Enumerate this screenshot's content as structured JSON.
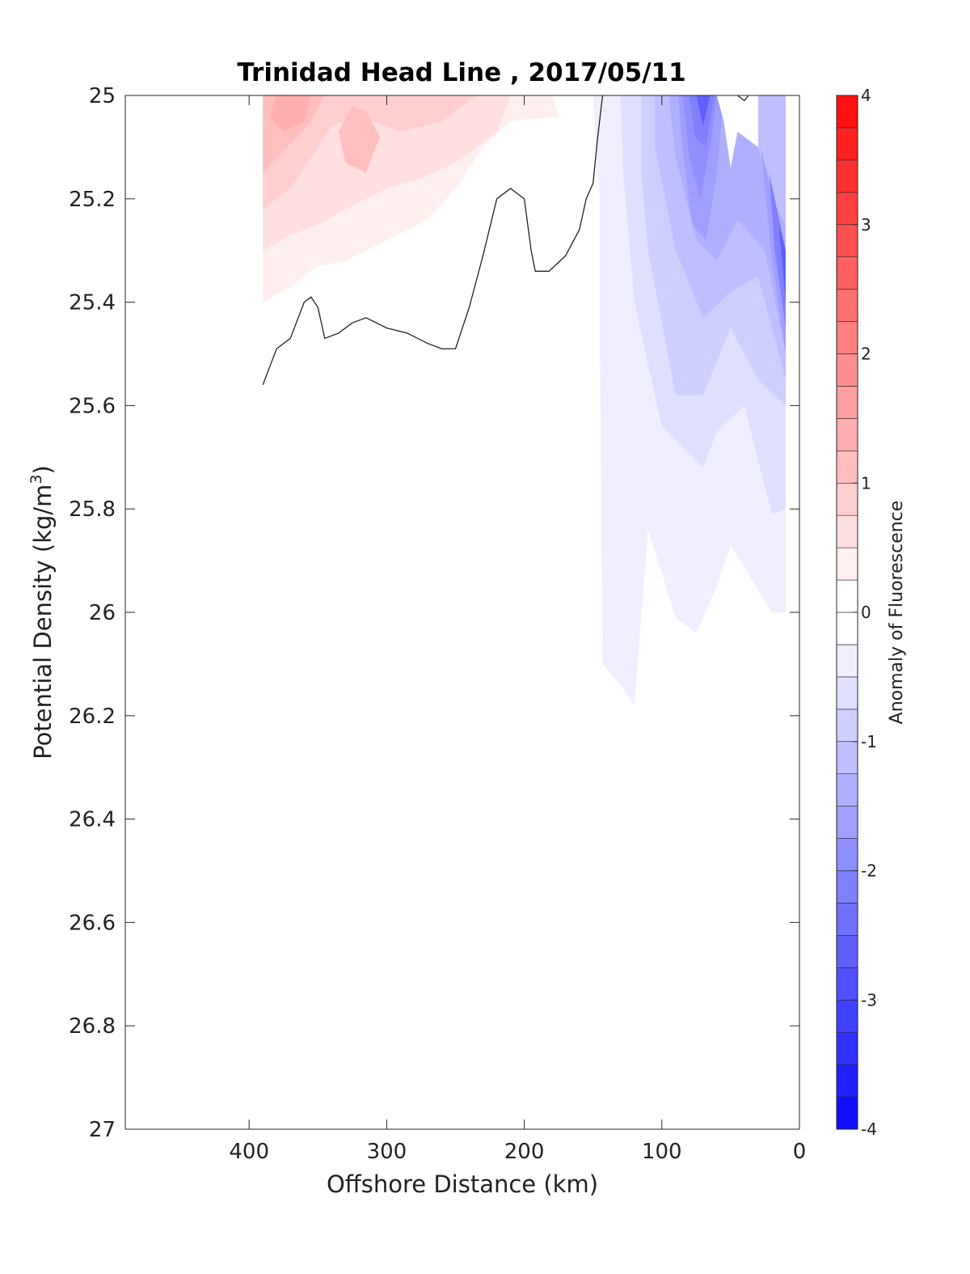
{
  "chart_data": {
    "type": "contour",
    "title": "Trinidad Head Line , 2017/05/11",
    "xlabel": "Offshore Distance (km)",
    "ylabel": "Potential Density (kg/m",
    "ylabel_sup": "3",
    "ylabel_close": ")",
    "xlim": [
      490,
      0
    ],
    "ylim": [
      25,
      27
    ],
    "x_reversed": true,
    "y_reversed": true,
    "x_ticks": [
      400,
      300,
      200,
      100,
      0
    ],
    "x_tick_labels": [
      "400",
      "300",
      "200",
      "100",
      "0"
    ],
    "y_ticks": [
      25,
      25.2,
      25.4,
      25.6,
      25.8,
      26,
      26.2,
      26.4,
      26.6,
      26.8,
      27
    ],
    "y_tick_labels": [
      "25",
      "25.2",
      "25.4",
      "25.6",
      "25.8",
      "26",
      "26.2",
      "26.4",
      "26.6",
      "26.8",
      "27"
    ],
    "colorbar": {
      "label": "Anomaly of Fluorescence",
      "range": [
        -4,
        4
      ],
      "step": 0.25,
      "ticks": [
        -4,
        -3,
        -2,
        -1,
        0,
        1,
        2,
        3,
        4
      ],
      "tick_labels": [
        "-4",
        "-3",
        "-2",
        "-1",
        "0",
        "1",
        "2",
        "3",
        "4"
      ],
      "min_color": "#0000ff",
      "zero_color": "#ffffff",
      "max_color": "#ff0000"
    },
    "regions": [
      {
        "level": 0.25,
        "points": [
          [
            390,
            25
          ],
          [
            180,
            25
          ],
          [
            175,
            25.04
          ],
          [
            210,
            25.05
          ],
          [
            230,
            25.1
          ],
          [
            250,
            25.18
          ],
          [
            270,
            25.24
          ],
          [
            300,
            25.28
          ],
          [
            330,
            25.32
          ],
          [
            350,
            25.33
          ],
          [
            370,
            25.37
          ],
          [
            390,
            25.4
          ]
        ]
      },
      {
        "level": 0.5,
        "points": [
          [
            390,
            25
          ],
          [
            210,
            25
          ],
          [
            220,
            25.07
          ],
          [
            250,
            25.13
          ],
          [
            275,
            25.16
          ],
          [
            300,
            25.18
          ],
          [
            330,
            25.22
          ],
          [
            350,
            25.25
          ],
          [
            370,
            25.27
          ],
          [
            390,
            25.3
          ]
        ]
      },
      {
        "level": 0.75,
        "points": [
          [
            390,
            25
          ],
          [
            235,
            25
          ],
          [
            260,
            25.05
          ],
          [
            290,
            25.07
          ],
          [
            320,
            25.04
          ],
          [
            340,
            25.06
          ],
          [
            355,
            25.12
          ],
          [
            370,
            25.18
          ],
          [
            390,
            25.22
          ]
        ]
      },
      {
        "level": 1.0,
        "points": [
          [
            390,
            25
          ],
          [
            345,
            25
          ],
          [
            355,
            25.05
          ],
          [
            365,
            25.08
          ],
          [
            380,
            25.12
          ],
          [
            390,
            25.15
          ]
        ]
      },
      {
        "level": 1.0,
        "points": [
          [
            315,
            25.03
          ],
          [
            305,
            25.08
          ],
          [
            315,
            25.15
          ],
          [
            330,
            25.13
          ],
          [
            335,
            25.07
          ],
          [
            325,
            25.02
          ]
        ]
      },
      {
        "level": 1.25,
        "points": [
          [
            380,
            25
          ],
          [
            355,
            25
          ],
          [
            360,
            25.05
          ],
          [
            375,
            25.07
          ],
          [
            385,
            25.04
          ]
        ]
      },
      {
        "level": -0.25,
        "points": [
          [
            150,
            25
          ],
          [
            10,
            25
          ],
          [
            10,
            26
          ],
          [
            20,
            26
          ],
          [
            50,
            25.87
          ],
          [
            60,
            25.95
          ],
          [
            75,
            26.04
          ],
          [
            90,
            26.01
          ],
          [
            110,
            25.84
          ],
          [
            120,
            26.18
          ],
          [
            130,
            26.14
          ],
          [
            143,
            26.1
          ],
          [
            145,
            25.5
          ],
          [
            145,
            25.2
          ],
          [
            148,
            25.1
          ]
        ]
      },
      {
        "level": -0.5,
        "points": [
          [
            130,
            25
          ],
          [
            10,
            25
          ],
          [
            10,
            25.8
          ],
          [
            20,
            25.81
          ],
          [
            40,
            25.6
          ],
          [
            60,
            25.65
          ],
          [
            70,
            25.72
          ],
          [
            100,
            25.64
          ],
          [
            120,
            25.4
          ],
          [
            128,
            25.15
          ]
        ]
      },
      {
        "level": -0.75,
        "points": [
          [
            115,
            25
          ],
          [
            10,
            25
          ],
          [
            10,
            25.6
          ],
          [
            30,
            25.55
          ],
          [
            50,
            25.45
          ],
          [
            70,
            25.58
          ],
          [
            90,
            25.58
          ],
          [
            110,
            25.3
          ],
          [
            115,
            25.15
          ]
        ]
      },
      {
        "level": -1.0,
        "points": [
          [
            105,
            25
          ],
          [
            10,
            25
          ],
          [
            10,
            25.55
          ],
          [
            30,
            25.35
          ],
          [
            50,
            25.38
          ],
          [
            70,
            25.43
          ],
          [
            90,
            25.3
          ],
          [
            105,
            25.1
          ]
        ]
      },
      {
        "level": -1.25,
        "points": [
          [
            95,
            25
          ],
          [
            40,
            25
          ],
          [
            30,
            25.1
          ],
          [
            20,
            25.2
          ],
          [
            10,
            25.25
          ],
          [
            10,
            25.5
          ],
          [
            25,
            25.3
          ],
          [
            45,
            25.24
          ],
          [
            60,
            25.32
          ],
          [
            75,
            25.28
          ],
          [
            90,
            25.12
          ]
        ]
      },
      {
        "level": -1.5,
        "points": [
          [
            88,
            25
          ],
          [
            55,
            25
          ],
          [
            60,
            25.15
          ],
          [
            68,
            25.28
          ],
          [
            78,
            25.25
          ],
          [
            85,
            25.1
          ]
        ]
      },
      {
        "level": -1.5,
        "points": [
          [
            28,
            25.1
          ],
          [
            10,
            25.3
          ],
          [
            10,
            25.5
          ],
          [
            20,
            25.32
          ]
        ]
      },
      {
        "level": -1.75,
        "points": [
          [
            85,
            25
          ],
          [
            60,
            25
          ],
          [
            65,
            25.1
          ],
          [
            72,
            25.2
          ],
          [
            80,
            25.12
          ]
        ]
      },
      {
        "level": -2.0,
        "points": [
          [
            80,
            25
          ],
          [
            62,
            25
          ],
          [
            68,
            25.1
          ],
          [
            76,
            25.08
          ]
        ]
      },
      {
        "level": -2.0,
        "points": [
          [
            22,
            25.15
          ],
          [
            10,
            25.3
          ],
          [
            10,
            25.45
          ],
          [
            18,
            25.3
          ]
        ]
      },
      {
        "level": -2.5,
        "points": [
          [
            75,
            25
          ],
          [
            65,
            25
          ],
          [
            70,
            25.06
          ]
        ]
      },
      {
        "level": -2.5,
        "points": [
          [
            15,
            25.25
          ],
          [
            10,
            25.3
          ],
          [
            10,
            25.4
          ]
        ]
      },
      {
        "level": 0,
        "points": [
          [
            60,
            25
          ],
          [
            30,
            25
          ],
          [
            30,
            25.1
          ],
          [
            45,
            25.07
          ],
          [
            50,
            25.14
          ],
          [
            55,
            25.05
          ]
        ]
      }
    ],
    "contour_line": {
      "level": 0,
      "points": [
        [
          390,
          25.56
        ],
        [
          380,
          25.49
        ],
        [
          370,
          25.47
        ],
        [
          360,
          25.4
        ],
        [
          355,
          25.39
        ],
        [
          350,
          25.41
        ],
        [
          345,
          25.47
        ],
        [
          335,
          25.46
        ],
        [
          325,
          25.44
        ],
        [
          315,
          25.43
        ],
        [
          300,
          25.45
        ],
        [
          285,
          25.46
        ],
        [
          270,
          25.48
        ],
        [
          260,
          25.49
        ],
        [
          250,
          25.49
        ],
        [
          240,
          25.41
        ],
        [
          230,
          25.31
        ],
        [
          220,
          25.2
        ],
        [
          210,
          25.18
        ],
        [
          200,
          25.2
        ],
        [
          195,
          25.3
        ],
        [
          192,
          25.34
        ],
        [
          182,
          25.34
        ],
        [
          170,
          25.31
        ],
        [
          160,
          25.26
        ],
        [
          155,
          25.2
        ],
        [
          150,
          25.17
        ],
        [
          147,
          25.09
        ],
        [
          144,
          25.02
        ],
        [
          143,
          25
        ]
      ]
    },
    "contour_line_small": {
      "points": [
        [
          45,
          25
        ],
        [
          40,
          25.01
        ],
        [
          37,
          25
        ]
      ]
    }
  }
}
